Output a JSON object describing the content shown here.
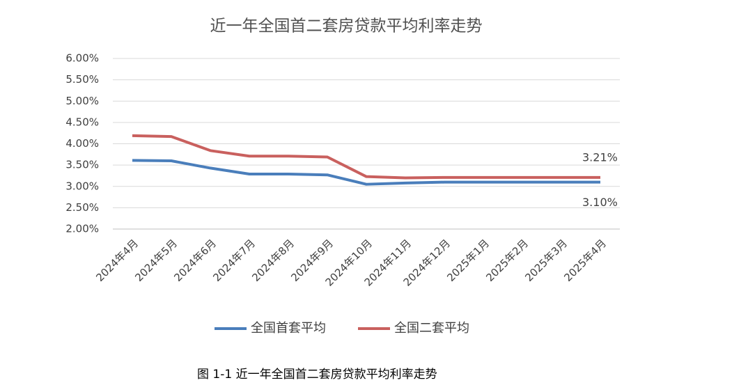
{
  "chart_data": {
    "type": "line",
    "title": "近一年全国首二套房贷款平均利率走势",
    "categories": [
      "2024年4月",
      "2024年5月",
      "2024年6月",
      "2024年7月",
      "2024年8月",
      "2024年9月",
      "2024年10月",
      "2024年11月",
      "2024年12月",
      "2025年1月",
      "2025年2月",
      "2025年3月",
      "2025年4月"
    ],
    "series": [
      {
        "name": "全国首套平均",
        "color": "#4a7ebb",
        "values": [
          3.61,
          3.6,
          3.43,
          3.29,
          3.29,
          3.27,
          3.05,
          3.08,
          3.1,
          3.1,
          3.1,
          3.1,
          3.1
        ],
        "value_labels": [
          null,
          null,
          null,
          null,
          null,
          null,
          null,
          null,
          null,
          null,
          null,
          null,
          "3.10%"
        ]
      },
      {
        "name": "全国二套平均",
        "color": "#c9605e",
        "values": [
          4.19,
          4.17,
          3.84,
          3.71,
          3.71,
          3.69,
          3.23,
          3.2,
          3.21,
          3.21,
          3.21,
          3.21,
          3.21
        ],
        "value_labels": [
          null,
          null,
          null,
          null,
          null,
          null,
          null,
          null,
          null,
          null,
          null,
          null,
          "3.21%"
        ]
      }
    ],
    "ylim": [
      2,
      6
    ],
    "yticks": [
      {
        "value": 2,
        "label": "2.00%"
      },
      {
        "value": 2.5,
        "label": "2.50%"
      },
      {
        "value": 3,
        "label": "3.00%"
      },
      {
        "value": 3.5,
        "label": "3.50%"
      },
      {
        "value": 4,
        "label": "4.00%"
      },
      {
        "value": 4.5,
        "label": "4.50%"
      },
      {
        "value": 5,
        "label": "5.00%"
      },
      {
        "value": 5.5,
        "label": "5.50%"
      },
      {
        "value": 6,
        "label": "6.00%"
      }
    ],
    "grid": true
  },
  "caption": "图 1-1  近一年全国首二套房贷款平均利率走势"
}
